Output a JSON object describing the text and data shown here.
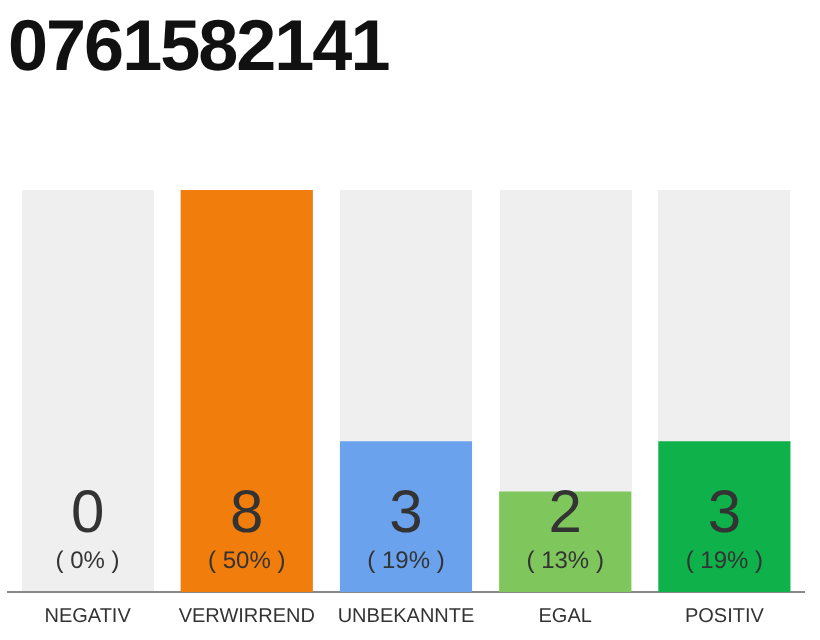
{
  "chart_data": {
    "type": "bar",
    "title": "0761582141",
    "categories": [
      "NEGATIV",
      "VERWIRREND",
      "UNBEKANNTE",
      "EGAL",
      "POSITIV"
    ],
    "values": [
      0,
      8,
      3,
      2,
      3
    ],
    "colors": [
      "#e03c31",
      "#f07d0c",
      "#6aa2ee",
      "#7fc65c",
      "#0fb14a"
    ],
    "value_labels": [
      "0\n( 0% )",
      "8\n( 50% )",
      "3\n( 19% )",
      "2\n( 13% )",
      "3\n( 19% )"
    ],
    "grid": false,
    "legend": false
  }
}
